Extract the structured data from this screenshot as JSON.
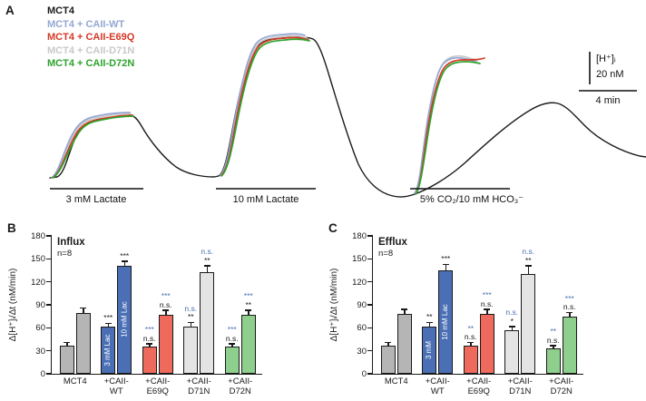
{
  "style": {
    "sig_blue": "#4a6fb5",
    "axis_color": "#1a1a1a",
    "background": "#ffffff"
  },
  "panelA": {
    "label": "A",
    "trace_colors": {
      "mct4": "#1a1a1a",
      "wt": "#94a7d4",
      "e69q": "#d53826",
      "d71n": "#c9c9c9",
      "d72n": "#2da32d"
    },
    "legend": [
      {
        "key": "mct4",
        "label": "MCT4"
      },
      {
        "key": "wt",
        "label": "MCT4 + CAII-WT"
      },
      {
        "key": "e69q",
        "label": "MCT4 + CAII-E69Q"
      },
      {
        "key": "d71n",
        "label": "MCT4 + CAII-D71N"
      },
      {
        "key": "d72n",
        "label": "MCT4 + CAII-D72N"
      }
    ],
    "scalebar": {
      "signal": "[H⁺]ᵢ",
      "amount": "20 nM",
      "time": "4 min"
    },
    "applications": [
      "3 mM Lactate",
      "10 mM Lactate",
      "5% CO₂/10 mM HCO₃⁻"
    ]
  },
  "chart_data": [
    {
      "type": "bar",
      "panel": "B",
      "title": "Influx",
      "n_label": "n=8",
      "ylabel": "Δ[H⁺]ᵢ/Δt (nM/min)",
      "ylim": [
        0,
        180
      ],
      "yticks": [
        0,
        30,
        60,
        90,
        120,
        150,
        180
      ],
      "categories": [
        "MCT4",
        "+CAII-\nWT",
        "+CAII-\nE69Q",
        "+CAII-\nD71N",
        "+CAII-\nD72N"
      ],
      "group_colors": [
        "#b5b5b5",
        "#4a6fb5",
        "#ee6a5d",
        "#e4e4e4",
        "#8fcf8d"
      ],
      "series": [
        {
          "name": "3 mM Lac",
          "values": [
            37,
            62,
            35,
            62,
            35
          ],
          "errors": [
            3,
            3,
            3,
            4,
            3
          ]
        },
        {
          "name": "10 mM Lac",
          "values": [
            79,
            141,
            77,
            133,
            77
          ],
          "errors": [
            6,
            5,
            5,
            7,
            5
          ]
        }
      ],
      "inside_bar_labels": {
        "category_index": 1,
        "labels": [
          "3 mM Lac",
          "10 mM Lac"
        ]
      },
      "significance": {
        "vs_mct4": [
          [
            "",
            ""
          ],
          [
            "***",
            "***"
          ],
          [
            "n.s.",
            "n.s."
          ],
          [
            "**",
            "**"
          ],
          [
            "n.s.",
            "**"
          ]
        ],
        "vs_wt": [
          [
            "",
            ""
          ],
          [
            "",
            ""
          ],
          [
            "***",
            "***"
          ],
          [
            "n.s.",
            "n.s."
          ],
          [
            "***",
            "***"
          ]
        ]
      }
    },
    {
      "type": "bar",
      "panel": "C",
      "title": "Efflux",
      "n_label": "n=8",
      "ylabel": "Δ[H⁺]ᵢ/Δt (nM/min)",
      "ylim": [
        0,
        180
      ],
      "yticks": [
        0,
        30,
        60,
        90,
        120,
        150,
        180
      ],
      "categories": [
        "MCT4",
        "+CAII-\nWT",
        "+CAII-\nE69Q",
        "+CAII-\nD71N",
        "+CAII-\nD72N"
      ],
      "group_colors": [
        "#b5b5b5",
        "#4a6fb5",
        "#ee6a5d",
        "#e4e4e4",
        "#8fcf8d"
      ],
      "series": [
        {
          "name": "3 mM",
          "values": [
            37,
            62,
            37,
            57,
            33
          ],
          "errors": [
            3,
            4,
            3,
            4,
            3
          ]
        },
        {
          "name": "10 mM Lac",
          "values": [
            78,
            135,
            78,
            130,
            75
          ],
          "errors": [
            5,
            7,
            5,
            10,
            4
          ]
        }
      ],
      "inside_bar_labels": {
        "category_index": 1,
        "labels": [
          "3 mM",
          "10 mM Lac"
        ]
      },
      "significance": {
        "vs_mct4": [
          [
            "",
            ""
          ],
          [
            "**",
            "***"
          ],
          [
            "n.s.",
            "n.s."
          ],
          [
            "*",
            "**"
          ],
          [
            "n.s.",
            "n.s."
          ]
        ],
        "vs_wt": [
          [
            "",
            ""
          ],
          [
            "",
            ""
          ],
          [
            "**",
            "***"
          ],
          [
            "n.s.",
            "n.s."
          ],
          [
            "**",
            "***"
          ]
        ]
      }
    }
  ]
}
